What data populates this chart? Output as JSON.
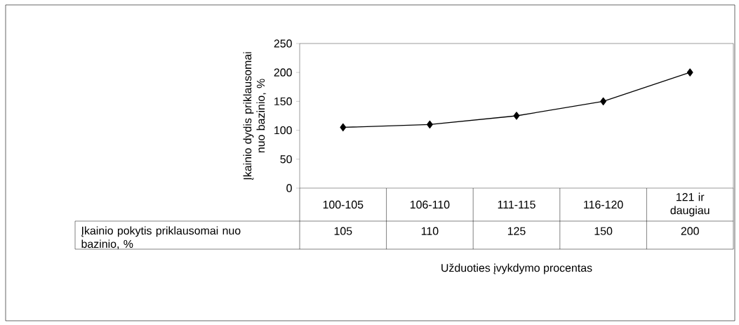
{
  "chart_data": {
    "type": "line",
    "ylabel": "Įkainio dydis priklausomai nuo bazinio, %",
    "xlabel": "Užduoties įvykdymo procentas",
    "categories": [
      "100-105",
      "106-110",
      "111-115",
      "116-120",
      "121 ir daugiau"
    ],
    "series": [
      {
        "name": "Įkainio pokytis priklausomai nuo bazinio, %",
        "color": "#000000",
        "values": [
          105,
          110,
          125,
          150,
          200
        ]
      }
    ],
    "ylim": [
      0,
      250
    ],
    "yticks": [
      0,
      50,
      100,
      150,
      200,
      250
    ],
    "marker": "diamond",
    "line_style": "solid",
    "data_labels": true
  }
}
